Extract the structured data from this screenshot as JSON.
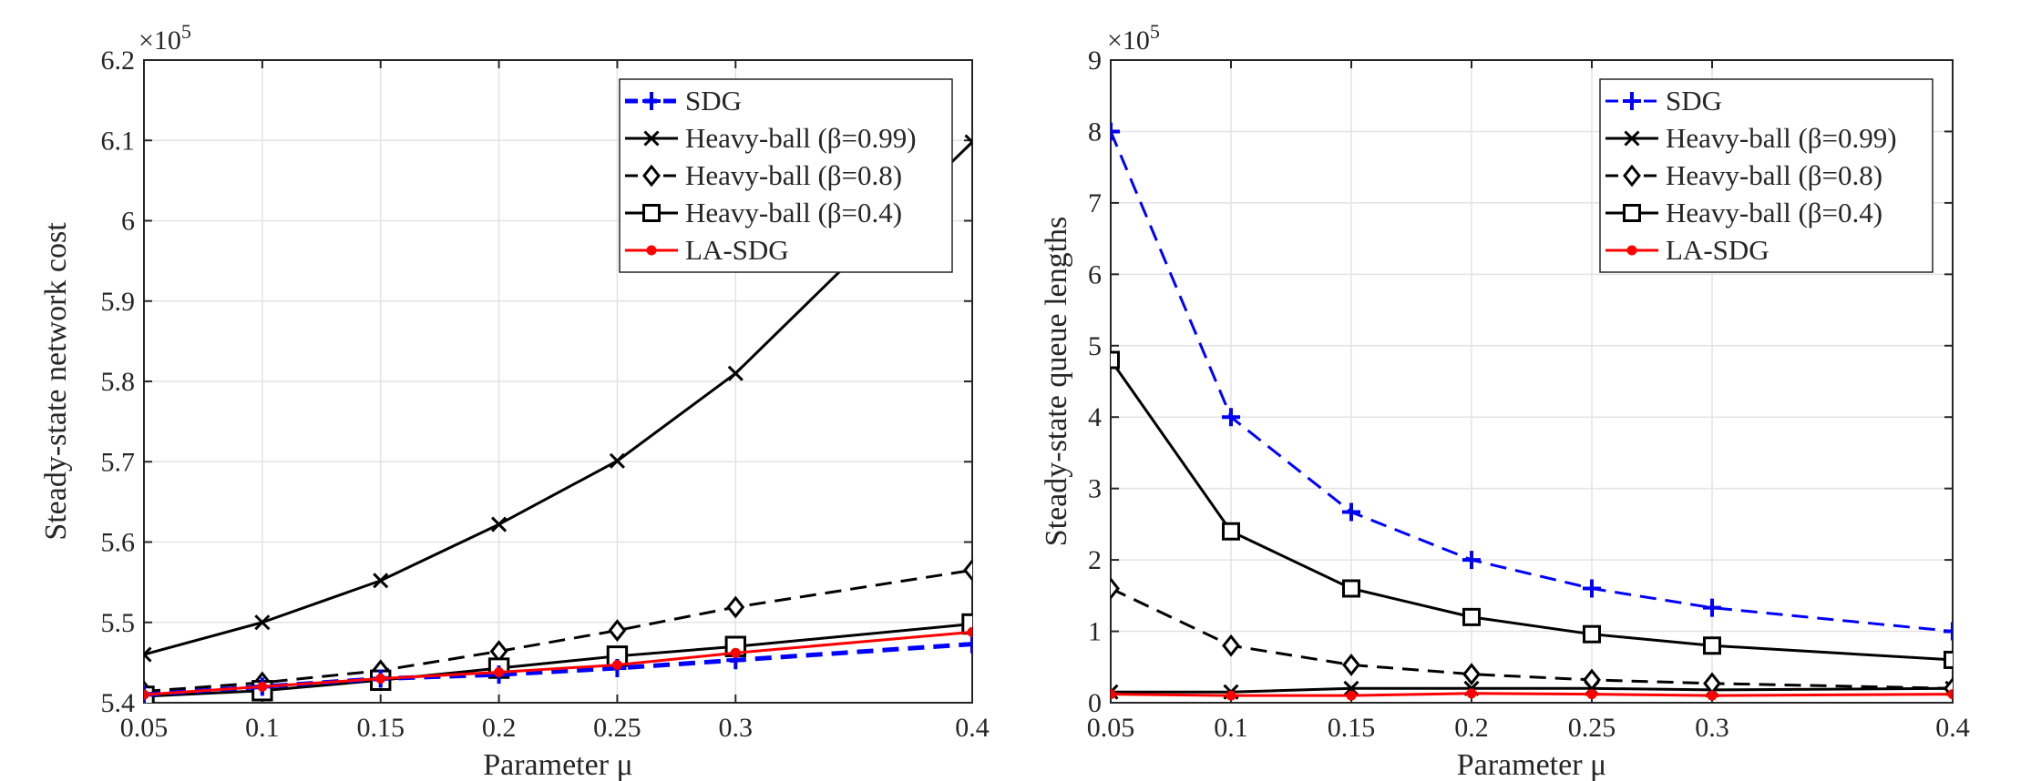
{
  "figure": {
    "charts_count": 2
  },
  "chart_data": [
    {
      "type": "line",
      "xlabel": "Parameter μ",
      "ylabel": "Steady-state network cost",
      "y_exponent_label": "×10",
      "y_exponent_power": "5",
      "x": [
        0.05,
        0.1,
        0.15,
        0.2,
        0.25,
        0.3,
        0.4
      ],
      "x_tick_labels": [
        "0.05",
        "0.1",
        "0.15",
        "0.2",
        "0.25",
        "0.3",
        "0.4"
      ],
      "xlim": [
        0.05,
        0.4
      ],
      "ylim": [
        5.4,
        6.2
      ],
      "y_ticks": [
        5.4,
        5.5,
        5.6,
        5.7,
        5.8,
        5.9,
        6.0,
        6.1,
        6.2
      ],
      "y_tick_labels": [
        "5.4",
        "5.5",
        "5.6",
        "5.7",
        "5.8",
        "5.9",
        "6",
        "6.1",
        "6.2"
      ],
      "grid": true,
      "legend_position": "top-right",
      "series": [
        {
          "name": "SDG",
          "color": "#0000ff",
          "dash": "dashed",
          "marker": "plus",
          "values": [
            5.41,
            5.42,
            5.43,
            5.435,
            5.443,
            5.453,
            5.473
          ]
        },
        {
          "name": "Heavy-ball (β=0.99)",
          "color": "#000000",
          "dash": "solid",
          "marker": "x",
          "values": [
            5.46,
            5.5,
            5.552,
            5.622,
            5.701,
            5.81,
            6.098
          ]
        },
        {
          "name": "Heavy-ball (β=0.8)",
          "color": "#000000",
          "dash": "dashed",
          "marker": "diamond",
          "values": [
            5.414,
            5.425,
            5.44,
            5.464,
            5.49,
            5.519,
            5.565
          ]
        },
        {
          "name": "Heavy-ball (β=0.4)",
          "color": "#000000",
          "dash": "solid",
          "marker": "square",
          "values": [
            5.408,
            5.415,
            5.428,
            5.443,
            5.458,
            5.47,
            5.498
          ]
        },
        {
          "name": "LA-SDG",
          "color": "#ff0000",
          "dash": "solid",
          "marker": "dot",
          "values": [
            5.41,
            5.42,
            5.43,
            5.438,
            5.447,
            5.462,
            5.488
          ]
        }
      ]
    },
    {
      "type": "line",
      "xlabel": "Parameter μ",
      "ylabel": "Steady-state queue lengths",
      "y_exponent_label": "×10",
      "y_exponent_power": "5",
      "x": [
        0.05,
        0.1,
        0.15,
        0.2,
        0.25,
        0.3,
        0.4
      ],
      "x_tick_labels": [
        "0.05",
        "0.1",
        "0.15",
        "0.2",
        "0.25",
        "0.3",
        "0.4"
      ],
      "xlim": [
        0.05,
        0.4
      ],
      "ylim": [
        0,
        9
      ],
      "y_ticks": [
        0,
        1,
        2,
        3,
        4,
        5,
        6,
        7,
        8,
        9
      ],
      "y_tick_labels": [
        "0",
        "1",
        "2",
        "3",
        "4",
        "5",
        "6",
        "7",
        "8",
        "9"
      ],
      "grid": true,
      "legend_position": "top-right",
      "series": [
        {
          "name": "SDG",
          "color": "#0000ff",
          "dash": "dashed",
          "marker": "plus",
          "values": [
            8.0,
            4.0,
            2.67,
            2.0,
            1.6,
            1.33,
            1.0
          ]
        },
        {
          "name": "Heavy-ball (β=0.99)",
          "color": "#000000",
          "dash": "solid",
          "marker": "x",
          "values": [
            0.15,
            0.15,
            0.2,
            0.2,
            0.2,
            0.18,
            0.2
          ]
        },
        {
          "name": "Heavy-ball (β=0.8)",
          "color": "#000000",
          "dash": "dashed",
          "marker": "diamond",
          "values": [
            1.6,
            0.8,
            0.53,
            0.4,
            0.32,
            0.27,
            0.2
          ]
        },
        {
          "name": "Heavy-ball (β=0.4)",
          "color": "#000000",
          "dash": "solid",
          "marker": "square",
          "values": [
            4.8,
            2.4,
            1.6,
            1.2,
            0.96,
            0.8,
            0.6
          ]
        },
        {
          "name": "LA-SDG",
          "color": "#ff0000",
          "dash": "solid",
          "marker": "dot",
          "values": [
            0.12,
            0.1,
            0.1,
            0.13,
            0.12,
            0.1,
            0.12
          ]
        }
      ]
    }
  ]
}
